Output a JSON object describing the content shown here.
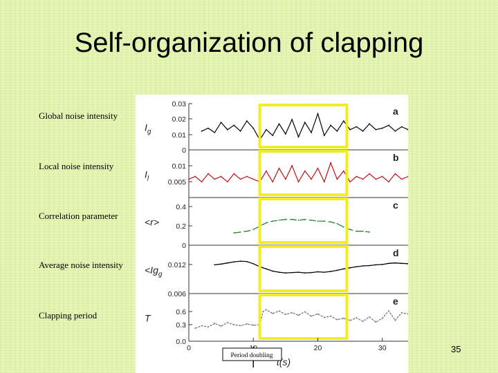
{
  "slide": {
    "title": "Self-organization of clapping",
    "page_number": "35",
    "row_labels": [
      "Global noise intensity",
      "Local noise intensity",
      "Correlation parameter",
      "Average noise intensity",
      "Clapping period"
    ],
    "annotation": "Period doubling"
  },
  "chart_data": {
    "type": "line",
    "xlabel": "t(s)",
    "x_ticks": [
      "0",
      "10",
      "20",
      "30"
    ],
    "xlim": [
      0,
      34
    ],
    "highlight_x": [
      11,
      24.5
    ],
    "annotation_x": 10,
    "colors": {
      "axes": "#333333",
      "highlight": "#f2ec22",
      "a": "#000000",
      "b": "#c21010",
      "c": "#1f8a2a",
      "d": "#000000",
      "e": "#777777"
    },
    "panels": [
      {
        "letter": "a",
        "ylabel": "Ig",
        "sub": "g",
        "yticks": [
          "0.03",
          "0.02",
          "0.01",
          "0"
        ],
        "ytick_values": [
          0.03,
          0.02,
          0.01,
          0
        ],
        "ylim": [
          0,
          0.03
        ],
        "x": [
          2,
          3,
          4,
          5,
          6,
          7,
          8,
          9,
          10,
          11,
          12,
          13,
          14,
          15,
          16,
          17,
          18,
          19,
          20,
          21,
          22,
          23,
          24,
          25,
          26,
          27,
          28,
          29,
          30,
          31,
          32,
          33,
          34
        ],
        "values": [
          0.012,
          0.014,
          0.011,
          0.018,
          0.013,
          0.016,
          0.012,
          0.019,
          0.014,
          0.006,
          0.013,
          0.009,
          0.017,
          0.01,
          0.02,
          0.008,
          0.018,
          0.011,
          0.024,
          0.009,
          0.016,
          0.012,
          0.019,
          0.013,
          0.015,
          0.012,
          0.017,
          0.013,
          0.014,
          0.016,
          0.012,
          0.015,
          0.013
        ]
      },
      {
        "letter": "b",
        "ylabel": "Il",
        "sub": "l",
        "yticks": [
          "0.01",
          "0.005"
        ],
        "ytick_values": [
          0.01,
          0.005
        ],
        "ylim": [
          0,
          0.013
        ],
        "x": [
          0,
          1,
          2,
          3,
          4,
          5,
          6,
          7,
          8,
          9,
          10,
          11,
          12,
          13,
          14,
          15,
          16,
          17,
          18,
          19,
          20,
          21,
          22,
          23,
          24,
          25,
          26,
          27,
          28,
          29,
          30,
          31,
          32,
          33,
          34
        ],
        "values": [
          0.005,
          0.006,
          0.004,
          0.007,
          0.005,
          0.006,
          0.004,
          0.007,
          0.005,
          0.006,
          0.005,
          0.004,
          0.008,
          0.004,
          0.009,
          0.005,
          0.01,
          0.004,
          0.008,
          0.005,
          0.009,
          0.004,
          0.011,
          0.005,
          0.008,
          0.004,
          0.006,
          0.005,
          0.007,
          0.005,
          0.006,
          0.004,
          0.007,
          0.005,
          0.006
        ]
      },
      {
        "letter": "c",
        "ylabel": "<r>",
        "sub": "",
        "yticks": [
          "0.4",
          "0.2",
          "0"
        ],
        "ytick_values": [
          0.4,
          0.2,
          0
        ],
        "ylim": [
          0,
          0.45
        ],
        "x": [
          7,
          8,
          9,
          10,
          11,
          12,
          13,
          14,
          15,
          16,
          17,
          18,
          19,
          20,
          21,
          22,
          23,
          24,
          25,
          26,
          27,
          28
        ],
        "values": [
          0.08,
          0.09,
          0.1,
          0.12,
          0.16,
          0.2,
          0.22,
          0.23,
          0.24,
          0.24,
          0.23,
          0.24,
          0.23,
          0.22,
          0.22,
          0.21,
          0.19,
          0.15,
          0.12,
          0.1,
          0.1,
          0.09
        ]
      },
      {
        "letter": "d",
        "ylabel": "<Ig>",
        "sub": "g",
        "yticks": [
          "0.012",
          "0.006"
        ],
        "ytick_values": [
          0.012,
          0.006
        ],
        "ylim": [
          0.006,
          0.015
        ],
        "x": [
          4,
          5,
          6,
          7,
          8,
          9,
          10,
          11,
          12,
          13,
          14,
          15,
          16,
          17,
          18,
          19,
          20,
          21,
          22,
          23,
          24,
          25,
          26,
          27,
          28,
          29,
          30,
          31,
          32,
          33,
          34
        ],
        "values": [
          0.0123,
          0.0125,
          0.0128,
          0.0131,
          0.0133,
          0.0132,
          0.0126,
          0.0118,
          0.0112,
          0.0106,
          0.0103,
          0.0101,
          0.0102,
          0.0103,
          0.0101,
          0.0102,
          0.0104,
          0.0103,
          0.0105,
          0.0108,
          0.0112,
          0.0115,
          0.0118,
          0.012,
          0.0121,
          0.0123,
          0.0124,
          0.0127,
          0.0128,
          0.0127,
          0.0126
        ]
      },
      {
        "letter": "e",
        "ylabel": "T",
        "sub": "",
        "yticks": [
          "0.6",
          "0.3",
          "0.0"
        ],
        "ytick_values": [
          0.6,
          0.3,
          0.0
        ],
        "ylim": [
          0,
          0.75
        ],
        "x": [
          1,
          2,
          3,
          4,
          5,
          6,
          7,
          8,
          9,
          10,
          11,
          11.5,
          12,
          13,
          14,
          15,
          16,
          17,
          18,
          19,
          20,
          21,
          22,
          23,
          24,
          25,
          26,
          27,
          28,
          29,
          30,
          31,
          32,
          33,
          34
        ],
        "values": [
          0.22,
          0.28,
          0.25,
          0.33,
          0.27,
          0.35,
          0.3,
          0.28,
          0.32,
          0.29,
          0.3,
          0.6,
          0.65,
          0.56,
          0.62,
          0.54,
          0.58,
          0.52,
          0.6,
          0.5,
          0.55,
          0.47,
          0.5,
          0.42,
          0.45,
          0.4,
          0.46,
          0.38,
          0.48,
          0.36,
          0.45,
          0.62,
          0.4,
          0.58,
          0.55
        ]
      }
    ]
  }
}
